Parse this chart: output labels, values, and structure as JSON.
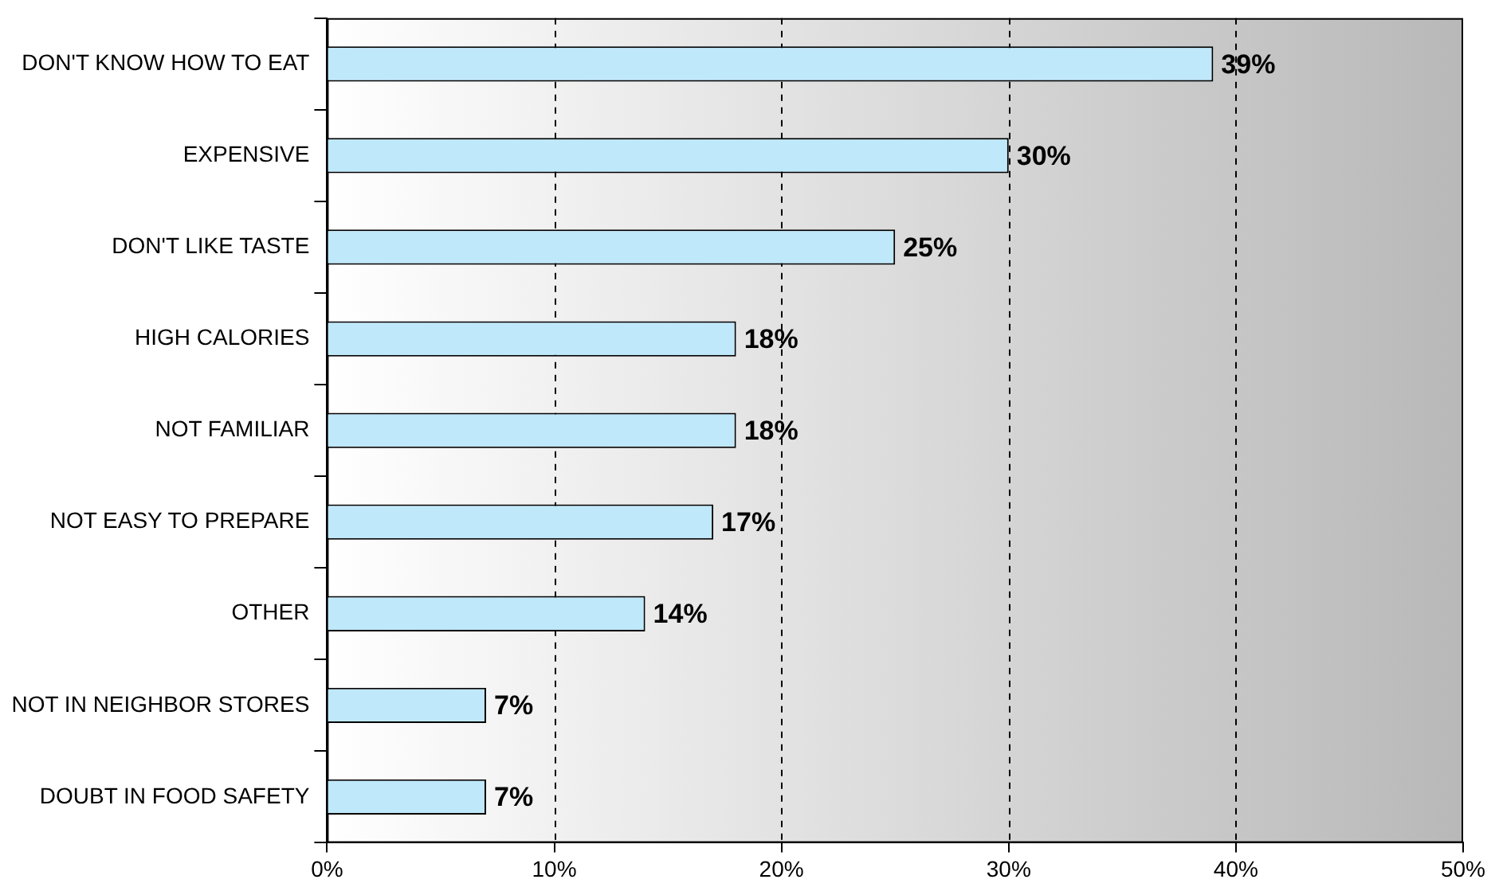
{
  "chart_data": {
    "type": "bar",
    "orientation": "horizontal",
    "categories": [
      "DON'T KNOW HOW TO EAT",
      "EXPENSIVE",
      "DON'T LIKE TASTE",
      "HIGH CALORIES",
      "NOT FAMILIAR",
      "NOT EASY TO PREPARE",
      "OTHER",
      "NOT IN NEIGHBOR STORES",
      "DOUBT IN FOOD SAFETY"
    ],
    "values": [
      39,
      30,
      25,
      18,
      18,
      17,
      14,
      7,
      7
    ],
    "value_labels": [
      "39%",
      "30%",
      "25%",
      "18%",
      "18%",
      "17%",
      "14%",
      "7%",
      "7%"
    ],
    "color": "#bfe8fb",
    "xlim": [
      0,
      50
    ],
    "xticks": [
      {
        "value": 0,
        "label": "0%"
      },
      {
        "value": 10,
        "label": "10%"
      },
      {
        "value": 20,
        "label": "20%"
      },
      {
        "value": 30,
        "label": "30%"
      },
      {
        "value": 40,
        "label": "40%"
      },
      {
        "value": 50,
        "label": "50%"
      }
    ],
    "grid": "x",
    "legend": false
  }
}
